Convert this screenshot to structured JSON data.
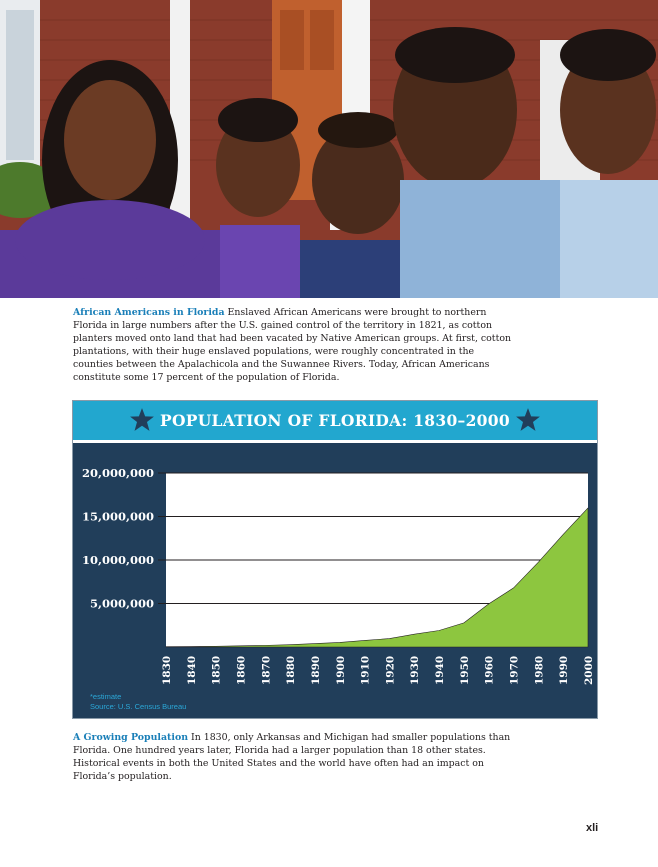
{
  "photo": {
    "alt": "",
    "colors": {
      "brick": "#8a3b2c",
      "door": "#c0602e",
      "purple": "#5b3a9a",
      "blue_shirt": "#8fb3d8"
    }
  },
  "caption1": {
    "lead": "African Americans in Florida",
    "body": " Enslaved African Americans were brought to northern Florida in large numbers after the U.S. gained control of the territory in 1821, as cotton planters moved onto land that had been vacated by Native American groups. At first, cotton plantations, with their huge enslaved populations, were roughly concentrated in the counties between the Apalachicola and the Suwannee Rivers. Today, African Americans constitute some 17 percent of the population of Florida."
  },
  "chart_data": {
    "type": "area",
    "title": "POPULATION OF FLORIDA: 1830–2000",
    "x": [
      "1830",
      "1840",
      "1850",
      "1860",
      "1870",
      "1880",
      "1890",
      "1900",
      "1910",
      "1920",
      "1930",
      "1940",
      "1950",
      "1960",
      "1970",
      "1980",
      "1990",
      "2000"
    ],
    "values": [
      34730,
      54477,
      87445,
      140424,
      187748,
      269493,
      391422,
      528542,
      752619,
      968470,
      1468211,
      1897414,
      2771305,
      4951560,
      6789443,
      9746324,
      12937926,
      15982378
    ],
    "yticks": [
      "20,000,000",
      "15,000,000",
      "10,000,000",
      "5,000,000"
    ],
    "ytick_values": [
      20000000,
      15000000,
      10000000,
      5000000
    ],
    "ylim": [
      0,
      20000000
    ],
    "grid": true,
    "colors": {
      "fill": "#8dc63f",
      "panel": "#213e5a",
      "header": "#22a7cf",
      "star": "#213e5a"
    }
  },
  "notes": {
    "estimate": "*estimate",
    "source": "Source: U.S. Census Bureau"
  },
  "caption2": {
    "lead": "A Growing Population",
    "body": " In 1830, only Arkansas and Michigan had smaller populations than Florida. One hundred years later, Florida had a larger population than 18 other states. Historical events in both the United States and the world have often had an impact on Florida’s population."
  },
  "page_number": "xli"
}
